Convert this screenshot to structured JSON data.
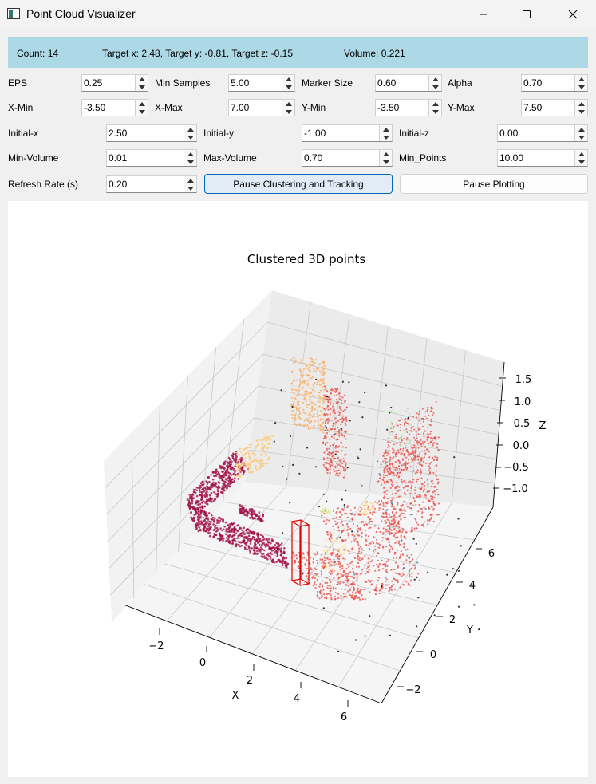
{
  "window": {
    "title": "Point Cloud Visualizer"
  },
  "status": {
    "count": "Count: 14",
    "target": "Target x: 2.48, Target y: -0.81, Target z: -0.15",
    "volume": "Volume: 0.221"
  },
  "params": {
    "eps": {
      "label": "EPS",
      "value": "0.25"
    },
    "min_samples": {
      "label": "Min Samples",
      "value": "5.00"
    },
    "marker_size": {
      "label": "Marker Size",
      "value": "0.60"
    },
    "alpha": {
      "label": "Alpha",
      "value": "0.70"
    },
    "x_min": {
      "label": "X-Min",
      "value": "-3.50"
    },
    "x_max": {
      "label": "X-Max",
      "value": "7.00"
    },
    "y_min": {
      "label": "Y-Min",
      "value": "-3.50"
    },
    "y_max": {
      "label": "Y-Max",
      "value": "7.50"
    },
    "initial_x": {
      "label": "Initial-x",
      "value": "2.50"
    },
    "initial_y": {
      "label": "Initial-y",
      "value": "-1.00"
    },
    "initial_z": {
      "label": "Initial-z",
      "value": "0.00"
    },
    "min_volume": {
      "label": "Min-Volume",
      "value": "0.01"
    },
    "max_volume": {
      "label": "Max-Volume",
      "value": "0.70"
    },
    "min_points": {
      "label": "Min_Points",
      "value": "10.00"
    },
    "refresh_rate": {
      "label": "Refresh Rate (s)",
      "value": "0.20"
    }
  },
  "buttons": {
    "pause_clustering": "Pause Clustering and Tracking",
    "pause_plotting": "Pause Plotting"
  },
  "colors": {
    "info_bar": "#add8e6",
    "button_primary_border": "#0067c0",
    "target_box": "#e00000"
  },
  "chart_data": {
    "type": "scatter",
    "projection": "3d",
    "title": "Clustered 3D points",
    "xlabel": "X",
    "ylabel": "Y",
    "zlabel": "Z",
    "xticks": [
      "−2",
      "0",
      "2",
      "4",
      "6"
    ],
    "yticks": [
      "−2",
      "0",
      "2",
      "4",
      "6"
    ],
    "zticks": [
      "1.5",
      "1.0",
      "0.5",
      "0.0",
      "−0.5",
      "−1.0"
    ],
    "xlim": [
      -3.5,
      7.0
    ],
    "ylim": [
      -3.5,
      7.5
    ],
    "zlim": [
      -1.2,
      1.7
    ],
    "grid": true,
    "target_box": {
      "x": 2.48,
      "y": -0.81,
      "z": -0.15
    },
    "clusters": [
      {
        "color": "#a3114a",
        "region": "left wall, front-left block"
      },
      {
        "color": "#fdc878",
        "region": "upper-left patch"
      },
      {
        "color": "#fdae61",
        "region": "back wall"
      },
      {
        "color": "#e8504a",
        "region": "center and right walls"
      },
      {
        "color": "#fee08b",
        "region": "small center patches"
      },
      {
        "color": "#abdda4",
        "region": "right back"
      },
      {
        "color": "#3288bd",
        "region": "sparse blue points"
      },
      {
        "color": "#000000",
        "region": "noise points"
      }
    ]
  }
}
